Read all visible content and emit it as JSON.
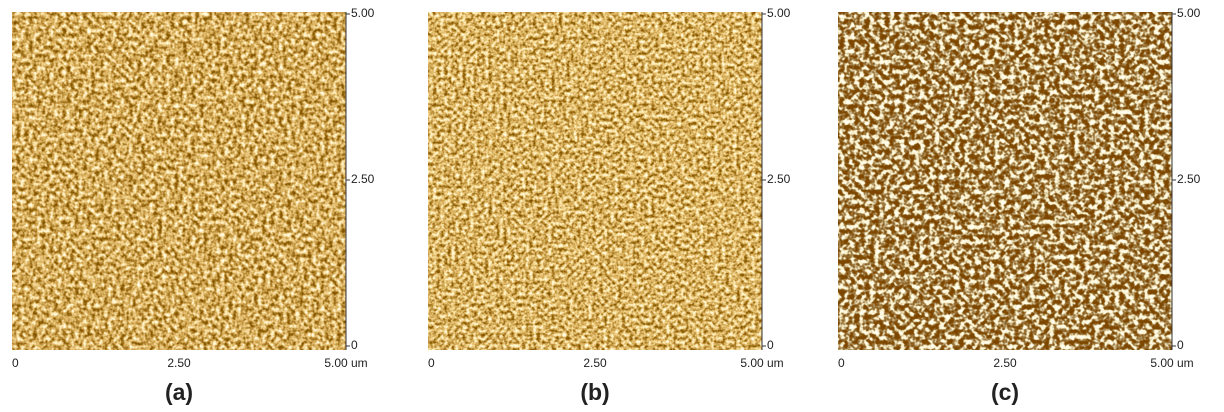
{
  "panels": [
    {
      "label": "(a)",
      "x_axis_labels": [
        "0",
        "2.50",
        "5.00 um"
      ],
      "y_axis_labels": [
        "5.00",
        "2.50",
        "0"
      ]
    },
    {
      "label": "(b)",
      "x_axis_labels": [
        "0",
        "2.50",
        "5.00 um"
      ],
      "y_axis_labels": [
        "5.00",
        "2.50",
        "0"
      ]
    },
    {
      "label": "(c)",
      "x_axis_labels": [
        "0",
        "2.50",
        "5.00 um"
      ],
      "y_axis_labels": [
        "5.00",
        "2.50",
        "0"
      ]
    }
  ]
}
